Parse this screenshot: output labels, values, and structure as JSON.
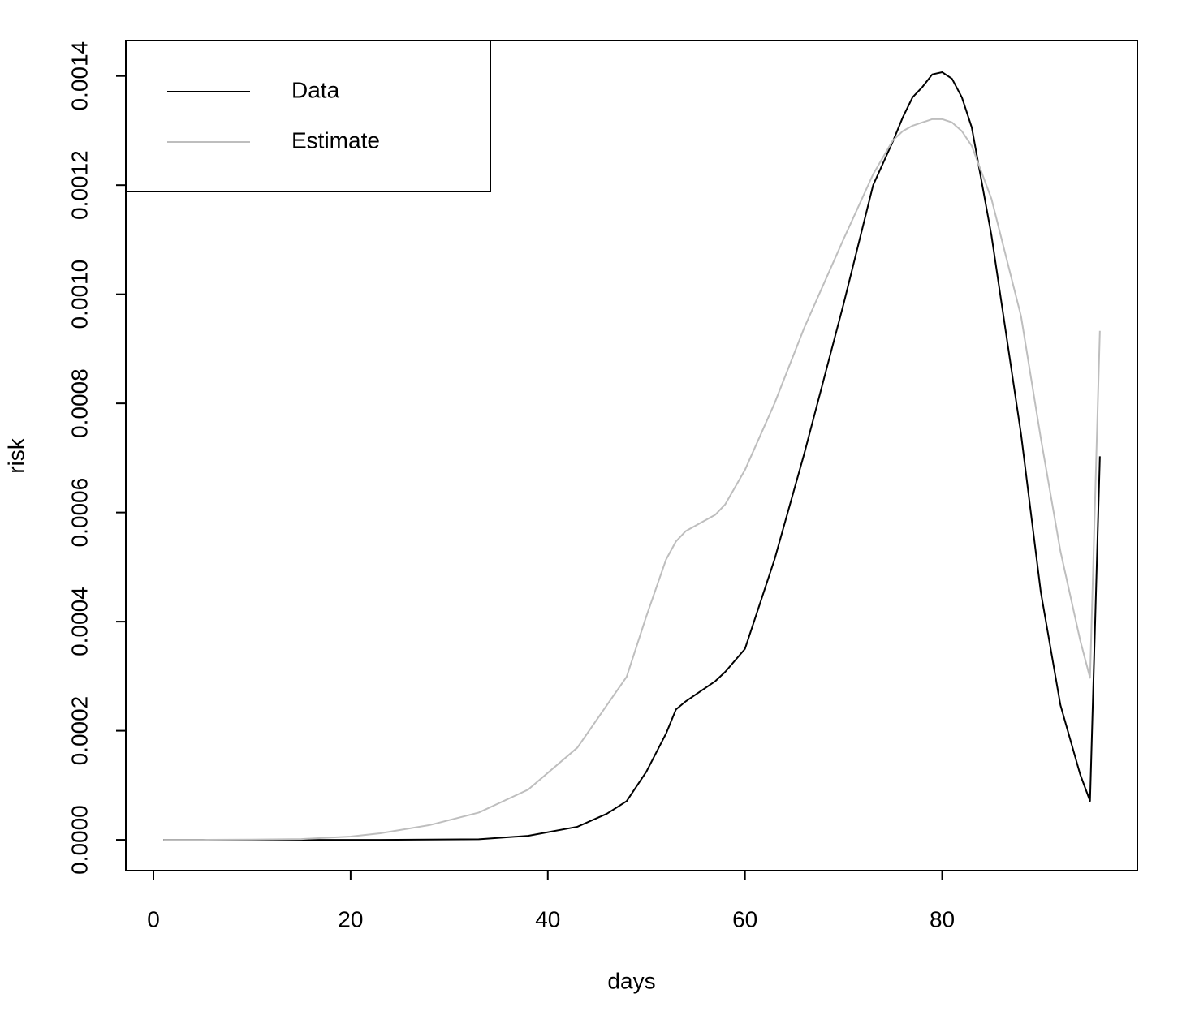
{
  "chart_data": {
    "type": "line",
    "x_label": "days",
    "y_label": "risk",
    "x": [
      1,
      5,
      10,
      15,
      20,
      23,
      28,
      33,
      38,
      43,
      46,
      48,
      50,
      52,
      53,
      54,
      57,
      58,
      60,
      63,
      66,
      70,
      73,
      75,
      76,
      77,
      78,
      79,
      80,
      81,
      82,
      83,
      85,
      88,
      90,
      92,
      94,
      95,
      96
    ],
    "series": [
      {
        "name": "Data",
        "color": "#000000",
        "values": [
          0,
          0,
          0,
          0,
          0,
          0,
          5e-07,
          1e-06,
          7.4e-06,
          2.4e-05,
          4.8e-05,
          7.1e-05,
          0.000125,
          0.000195,
          0.000239,
          0.000254,
          0.000291,
          0.000308,
          0.00035,
          0.000514,
          0.000707,
          0.000982,
          0.0012,
          0.00128,
          0.001324,
          0.001361,
          0.00138,
          0.001403,
          0.001407,
          0.001395,
          0.001361,
          0.001306,
          0.001108,
          0.000744,
          0.000455,
          0.000247,
          0.00012,
          7.13e-05,
          0.000703
        ]
      },
      {
        "name": "Estimate",
        "color": "#bebebe",
        "values": [
          0,
          0,
          5e-07,
          1.5e-06,
          6e-06,
          1.2e-05,
          2.7e-05,
          5e-05,
          9.2e-05,
          0.000169,
          0.000247,
          0.000299,
          0.00041,
          0.000514,
          0.000547,
          0.000566,
          0.000596,
          0.000615,
          0.000678,
          0.0008,
          0.000938,
          0.001101,
          0.00122,
          0.001282,
          0.001299,
          0.001309,
          0.001315,
          0.001321,
          0.001321,
          0.001315,
          0.001299,
          0.001272,
          0.001175,
          0.00096,
          0.000737,
          0.000529,
          0.000366,
          0.000297,
          0.000933
        ]
      }
    ],
    "xlim": [
      -2.8,
      99.8
    ],
    "ylim": [
      -5.64e-05,
      0.001465
    ],
    "xticks": [
      0,
      20,
      40,
      60,
      80
    ],
    "yticks": [
      {
        "value": 0,
        "label": "0.0000"
      },
      {
        "value": 0.0002,
        "label": "0.0002"
      },
      {
        "value": 0.0004,
        "label": "0.0004"
      },
      {
        "value": 0.0006,
        "label": "0.0006"
      },
      {
        "value": 0.0008,
        "label": "0.0008"
      },
      {
        "value": 0.001,
        "label": "0.0010"
      },
      {
        "value": 0.0012,
        "label": "0.0012"
      },
      {
        "value": 0.0014,
        "label": "0.0014"
      }
    ],
    "legend": "topleft"
  }
}
